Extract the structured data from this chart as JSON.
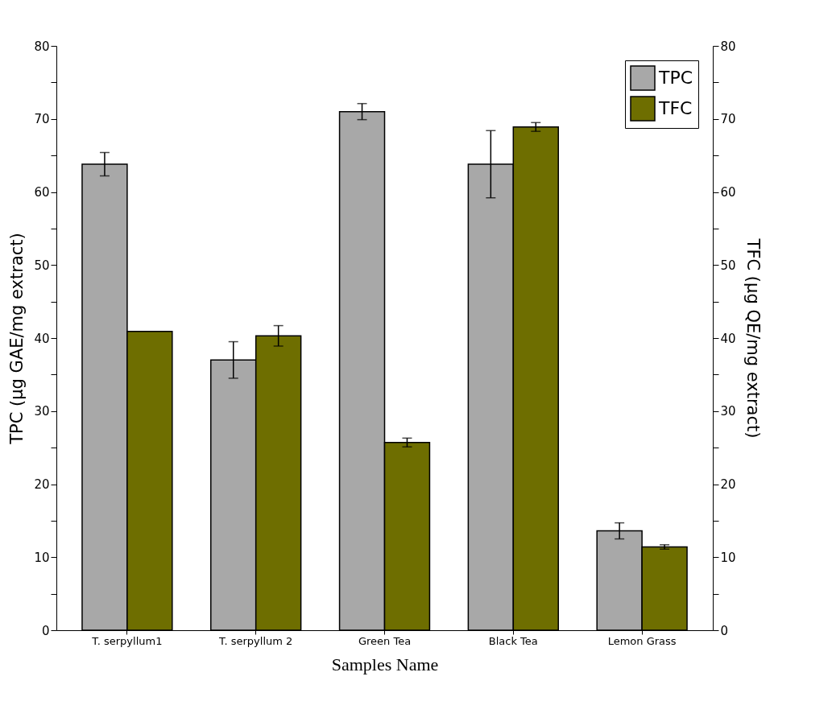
{
  "chart_data": {
    "type": "bar",
    "xlabel": "Samples Name",
    "ylabel": "TPC (µg GAE/mg extract)",
    "y2label": "TFC (µg QE/mg extract)",
    "categories": [
      "T. serpyllum1",
      "T. serpyllum 2",
      "Green Tea",
      "Black Tea",
      "Lemon Grass"
    ],
    "series": [
      {
        "name": "TPC",
        "color": "#a8a8a8",
        "values": [
          63.8,
          37,
          71,
          63.8,
          13.6
        ],
        "errors": [
          1.6,
          2.5,
          1.1,
          4.6,
          1.1
        ]
      },
      {
        "name": "TFC",
        "color": "#6e6e00",
        "axis": "y2",
        "values": [
          40.9,
          40.3,
          25.7,
          68.9,
          11.4
        ],
        "errors": [
          null,
          1.4,
          0.6,
          0.6,
          0.3
        ]
      }
    ],
    "ylim": [
      0,
      80
    ],
    "yticks": [
      0,
      {
        "value": 5,
        "label": null
      },
      10,
      {
        "value": 15,
        "label": null
      },
      20,
      {
        "value": 25,
        "label": null
      },
      30,
      {
        "value": 35,
        "label": null
      },
      40,
      {
        "value": 45,
        "label": null
      },
      50,
      {
        "value": 55,
        "label": null
      },
      60,
      {
        "value": 65,
        "label": null
      },
      70,
      {
        "value": 75,
        "label": null
      },
      80
    ],
    "y2lim": [
      0,
      80
    ],
    "y2ticks": [
      0,
      {
        "value": 5,
        "label": null
      },
      10,
      {
        "value": 15,
        "label": null
      },
      20,
      {
        "value": 25,
        "label": null
      },
      30,
      {
        "value": 35,
        "label": null
      },
      40,
      {
        "value": 45,
        "label": null
      },
      50,
      {
        "value": 55,
        "label": null
      },
      60,
      {
        "value": 65,
        "label": null
      },
      70,
      {
        "value": 75,
        "label": null
      },
      80
    ],
    "legend": "top right",
    "grid": false
  }
}
